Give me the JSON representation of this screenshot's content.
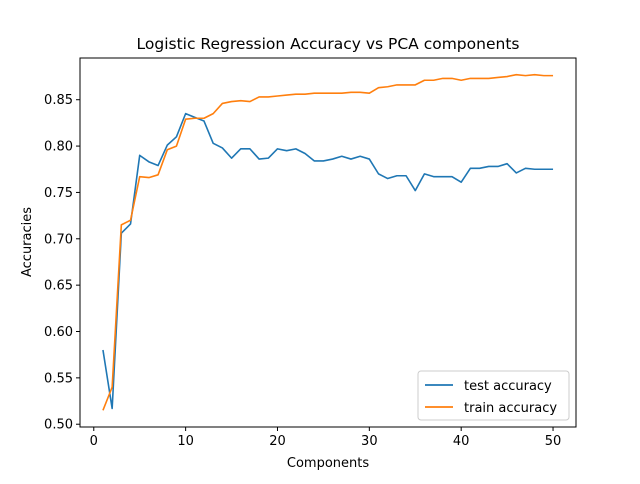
{
  "chart_data": {
    "type": "line",
    "title": "Logistic Regression Accuracy vs PCA components",
    "xlabel": "Components",
    "ylabel": "Accuracies",
    "xlim": [
      -1.5,
      52.5
    ],
    "ylim": [
      0.497,
      0.895
    ],
    "xticks": [
      0,
      10,
      20,
      30,
      40,
      50
    ],
    "xtick_labels": [
      "0",
      "10",
      "20",
      "30",
      "40",
      "50"
    ],
    "yticks": [
      0.5,
      0.55,
      0.6,
      0.65,
      0.7,
      0.75,
      0.8,
      0.85
    ],
    "ytick_labels": [
      "0.50",
      "0.55",
      "0.60",
      "0.65",
      "0.70",
      "0.75",
      "0.80",
      "0.85"
    ],
    "grid": false,
    "legend_position": "lower-right",
    "x": [
      1,
      2,
      3,
      4,
      5,
      6,
      7,
      8,
      9,
      10,
      11,
      12,
      13,
      14,
      15,
      16,
      17,
      18,
      19,
      20,
      21,
      22,
      23,
      24,
      25,
      26,
      27,
      28,
      29,
      30,
      31,
      32,
      33,
      34,
      35,
      36,
      37,
      38,
      39,
      40,
      41,
      42,
      43,
      44,
      45,
      46,
      47,
      48,
      49,
      50
    ],
    "series": [
      {
        "name": "test accuracy",
        "color": "#1f77b4",
        "values": [
          0.58,
          0.517,
          0.706,
          0.716,
          0.79,
          0.783,
          0.779,
          0.801,
          0.81,
          0.835,
          0.831,
          0.827,
          0.803,
          0.798,
          0.787,
          0.797,
          0.797,
          0.786,
          0.787,
          0.797,
          0.795,
          0.797,
          0.792,
          0.784,
          0.784,
          0.786,
          0.789,
          0.786,
          0.789,
          0.786,
          0.77,
          0.765,
          0.768,
          0.768,
          0.752,
          0.77,
          0.767,
          0.767,
          0.767,
          0.761,
          0.776,
          0.776,
          0.778,
          0.778,
          0.781,
          0.771,
          0.776,
          0.775,
          0.775,
          0.775
        ]
      },
      {
        "name": "train accuracy",
        "color": "#ff7f0e",
        "values": [
          0.515,
          0.54,
          0.715,
          0.72,
          0.767,
          0.766,
          0.769,
          0.796,
          0.8,
          0.829,
          0.83,
          0.83,
          0.835,
          0.846,
          0.848,
          0.849,
          0.848,
          0.853,
          0.853,
          0.854,
          0.855,
          0.856,
          0.856,
          0.857,
          0.857,
          0.857,
          0.857,
          0.858,
          0.858,
          0.857,
          0.863,
          0.864,
          0.866,
          0.866,
          0.866,
          0.871,
          0.871,
          0.873,
          0.873,
          0.871,
          0.873,
          0.873,
          0.873,
          0.874,
          0.875,
          0.877,
          0.876,
          0.877,
          0.876,
          0.876
        ]
      }
    ]
  }
}
